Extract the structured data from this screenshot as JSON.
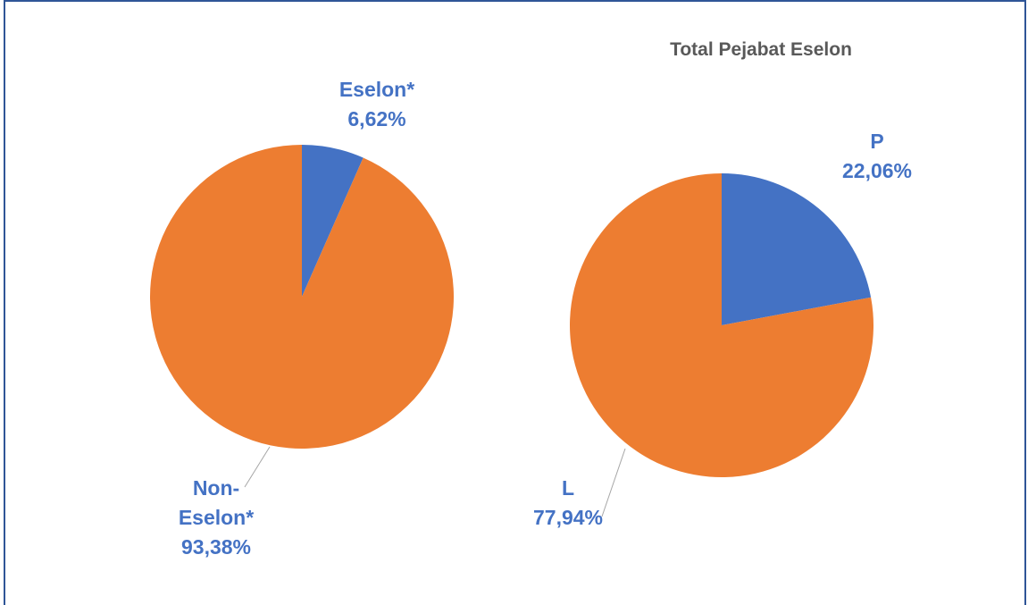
{
  "chart_data": [
    {
      "type": "pie",
      "categories": [
        "Eselon*",
        "Non-Eselon*"
      ],
      "values": [
        6.62,
        93.38
      ],
      "value_labels": [
        "6,62%",
        "93,38%"
      ],
      "colors": [
        "#4472c4",
        "#ed7d31"
      ]
    },
    {
      "type": "pie",
      "title": "Total Pejabat Eselon",
      "categories": [
        "P",
        "L"
      ],
      "values": [
        22.06,
        77.94
      ],
      "value_labels": [
        "22,06%",
        "77,94%"
      ],
      "colors": [
        "#4472c4",
        "#ed7d31"
      ]
    }
  ]
}
